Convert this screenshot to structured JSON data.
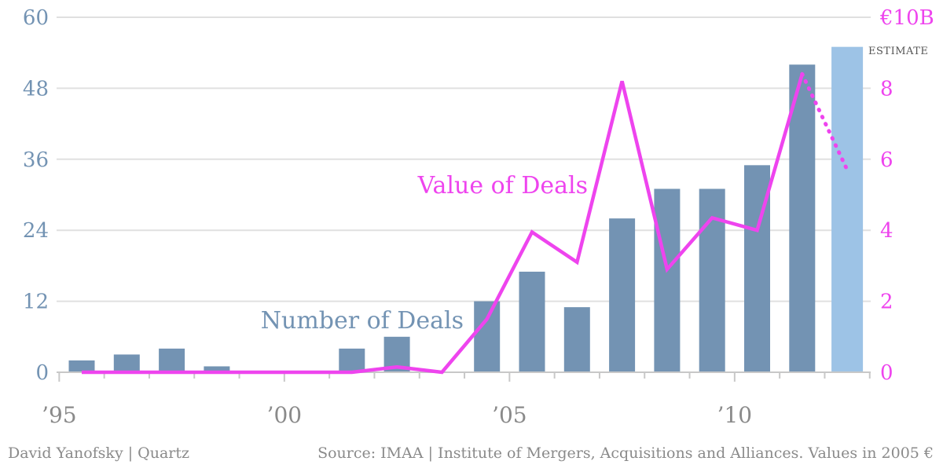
{
  "chart_data": {
    "type": "bar",
    "x": [
      1995,
      1996,
      1997,
      1998,
      1999,
      2000,
      2001,
      2002,
      2003,
      2004,
      2005,
      2006,
      2007,
      2008,
      2009,
      2010,
      2011,
      2012
    ],
    "xtick_labels": [
      {
        "x": 1995,
        "label": "’95"
      },
      {
        "x": 2000,
        "label": "’00"
      },
      {
        "x": 2005,
        "label": "’05"
      },
      {
        "x": 2010,
        "label": "’10"
      }
    ],
    "left_axis": {
      "ticks": [
        0,
        12,
        24,
        36,
        48,
        60
      ],
      "ylim": [
        0,
        60
      ]
    },
    "right_axis": {
      "ticks": [
        "0",
        "2",
        "4",
        "6",
        "8",
        "€10B"
      ],
      "ylim": [
        0,
        10
      ]
    },
    "series": [
      {
        "name": "Number of Deals",
        "axis": "left",
        "type": "bar",
        "values": [
          2,
          3,
          4,
          1,
          0,
          0,
          4,
          6,
          0,
          12,
          17,
          11,
          26,
          31,
          31,
          35,
          52,
          55
        ],
        "estimated": [
          false,
          false,
          false,
          false,
          false,
          false,
          false,
          false,
          false,
          false,
          false,
          false,
          false,
          false,
          false,
          false,
          false,
          true
        ]
      },
      {
        "name": "Value of Deals",
        "axis": "right",
        "type": "line",
        "values": [
          0,
          0,
          0,
          0,
          0,
          0,
          0,
          0.15,
          0,
          1.5,
          3.95,
          3.1,
          8.2,
          2.9,
          4.35,
          4.0,
          8.4,
          5.7
        ],
        "estimated": [
          false,
          false,
          false,
          false,
          false,
          false,
          false,
          false,
          false,
          false,
          false,
          false,
          false,
          false,
          false,
          false,
          false,
          true
        ]
      }
    ],
    "annotations": {
      "estimate": "ESTIMATE"
    },
    "grid": true,
    "colors": {
      "bars": "#7393b3",
      "estimate_bar": "#9dc3e6",
      "line": "#ee44ee",
      "left_axis_text": "#7393b3",
      "right_axis_text": "#ee44ee",
      "grid": "#e0e0e0",
      "axis": "#c8c8c8"
    }
  },
  "footer": {
    "credit": "David Yanofsky | Quartz",
    "source": "Source: IMAA | Institute of Mergers, Acquisitions and Alliances. Values in 2005 €"
  }
}
